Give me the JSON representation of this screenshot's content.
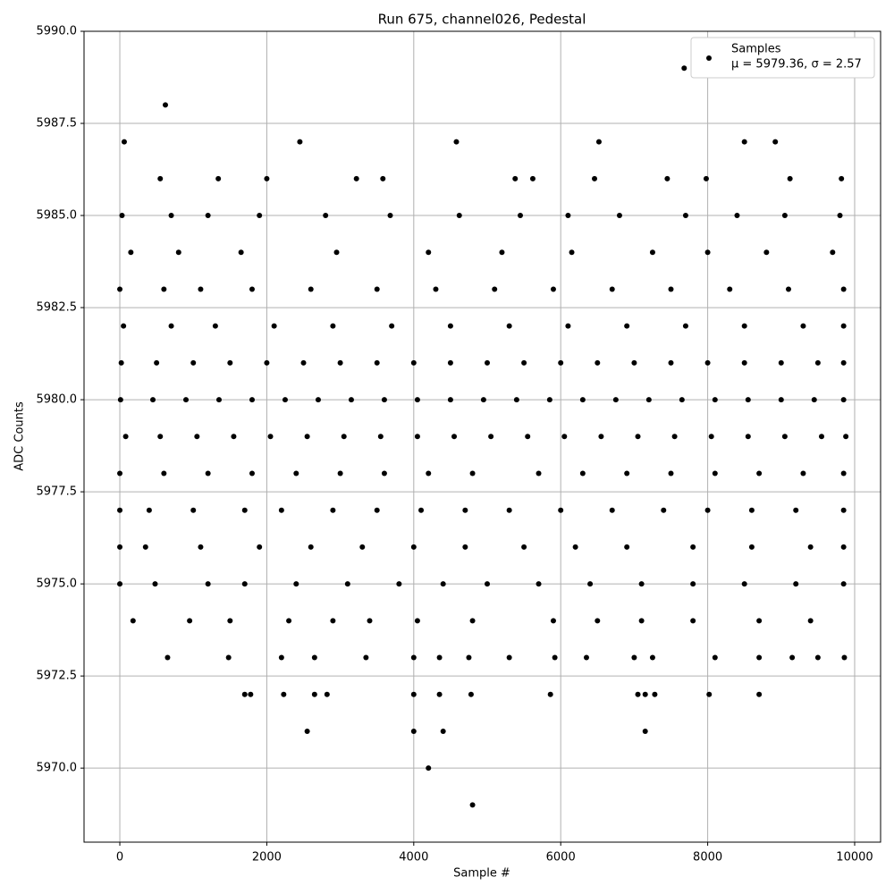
{
  "chart_data": {
    "type": "scatter",
    "title": "Run 675, channel026, Pedestal",
    "xlabel": "Sample #",
    "ylabel": "ADC Counts",
    "xlim": [
      -487,
      10353
    ],
    "ylim": [
      5967.99,
      5990
    ],
    "xticks": [
      0,
      2000,
      4000,
      6000,
      8000,
      10000
    ],
    "yticks": [
      {
        "value": 5970,
        "label": "5970.0"
      },
      {
        "value": 5972.5,
        "label": "5972.5"
      },
      {
        "value": 5975,
        "label": "5975.0"
      },
      {
        "value": 5977.5,
        "label": "5977.5"
      },
      {
        "value": 5980,
        "label": "5980.0"
      },
      {
        "value": 5982.5,
        "label": "5982.5"
      },
      {
        "value": 5985,
        "label": "5985.0"
      },
      {
        "value": 5987.5,
        "label": "5987.5"
      },
      {
        "value": 5990,
        "label": "5990.0"
      }
    ],
    "grid": true,
    "legend": "upper right",
    "legend_text": "μ = 5979.36, σ = 2.57",
    "x": [
      7680,
      620,
      60,
      2450,
      4580,
      6520,
      8500,
      8920,
      550,
      1340,
      2000,
      3220,
      3580,
      5380,
      5620,
      6460,
      7450,
      7980,
      9120,
      9820,
      30,
      700,
      1200,
      1900,
      2800,
      3680,
      4620,
      5450,
      6100,
      6800,
      7700,
      8400,
      9050,
      9800,
      150,
      800,
      1650,
      2950,
      4200,
      5200,
      6150,
      7250,
      8000,
      8800,
      9700,
      0,
      600,
      1100,
      1800,
      2600,
      3500,
      4300,
      5100,
      5900,
      6700,
      7500,
      8300,
      9100,
      9850,
      50,
      700,
      1300,
      2100,
      2900,
      3700,
      4500,
      5300,
      6100,
      6900,
      7700,
      8500,
      9300,
      9850,
      20,
      500,
      1000,
      1500,
      2000,
      2500,
      3000,
      3500,
      4000,
      4500,
      5000,
      5500,
      6000,
      6500,
      7000,
      7500,
      8000,
      8500,
      9000,
      9500,
      9850,
      10,
      450,
      900,
      1350,
      1800,
      2250,
      2700,
      3150,
      3600,
      4050,
      4500,
      4950,
      5400,
      5850,
      6300,
      6750,
      7200,
      7650,
      8100,
      8550,
      9000,
      9450,
      9850,
      80,
      550,
      1050,
      1550,
      2050,
      2550,
      3050,
      3550,
      4050,
      4550,
      5050,
      5550,
      6050,
      6550,
      7050,
      7550,
      8050,
      8550,
      9050,
      9550,
      9880,
      0,
      600,
      1200,
      1800,
      2400,
      3000,
      3600,
      4200,
      4800,
      5700,
      6300,
      6900,
      7500,
      8100,
      8700,
      9300,
      9850,
      0,
      400,
      1000,
      1700,
      2200,
      2900,
      3500,
      4100,
      4700,
      5300,
      6000,
      6700,
      7400,
      8000,
      8600,
      9200,
      9850,
      0,
      350,
      1100,
      1900,
      2600,
      3300,
      4000,
      4700,
      5500,
      6200,
      6900,
      7800,
      8600,
      9400,
      9850,
      0,
      480,
      1200,
      1700,
      2400,
      3100,
      3800,
      4400,
      5000,
      5700,
      6400,
      7100,
      7800,
      8500,
      9200,
      9850,
      180,
      950,
      1500,
      2300,
      2900,
      3400,
      4050,
      4800,
      5900,
      6500,
      7100,
      7800,
      8700,
      9400,
      650,
      1480,
      2200,
      2650,
      3350,
      4000,
      4350,
      4750,
      5300,
      5920,
      6350,
      7000,
      7250,
      8100,
      8700,
      9150,
      9500,
      9860,
      1700,
      1780,
      2230,
      2650,
      2820,
      4000,
      4350,
      4780,
      5860,
      7050,
      7150,
      7280,
      8020,
      8700,
      2550,
      4000,
      4400,
      7150,
      4200,
      4800
    ],
    "series": [
      {
        "name": "Samples",
        "color": "#000000",
        "values": [
          5989,
          5988,
          5987,
          5987,
          5987,
          5987,
          5987,
          5987,
          5986,
          5986,
          5986,
          5986,
          5986,
          5986,
          5986,
          5986,
          5986,
          5986,
          5986,
          5986,
          5985,
          5985,
          5985,
          5985,
          5985,
          5985,
          5985,
          5985,
          5985,
          5985,
          5985,
          5985,
          5985,
          5985,
          5984,
          5984,
          5984,
          5984,
          5984,
          5984,
          5984,
          5984,
          5984,
          5984,
          5984,
          5983,
          5983,
          5983,
          5983,
          5983,
          5983,
          5983,
          5983,
          5983,
          5983,
          5983,
          5983,
          5983,
          5983,
          5982,
          5982,
          5982,
          5982,
          5982,
          5982,
          5982,
          5982,
          5982,
          5982,
          5982,
          5982,
          5982,
          5982,
          5981,
          5981,
          5981,
          5981,
          5981,
          5981,
          5981,
          5981,
          5981,
          5981,
          5981,
          5981,
          5981,
          5981,
          5981,
          5981,
          5981,
          5981,
          5981,
          5981,
          5981,
          5980,
          5980,
          5980,
          5980,
          5980,
          5980,
          5980,
          5980,
          5980,
          5980,
          5980,
          5980,
          5980,
          5980,
          5980,
          5980,
          5980,
          5980,
          5980,
          5980,
          5980,
          5980,
          5980,
          5979,
          5979,
          5979,
          5979,
          5979,
          5979,
          5979,
          5979,
          5979,
          5979,
          5979,
          5979,
          5979,
          5979,
          5979,
          5979,
          5979,
          5979,
          5979,
          5979,
          5979,
          5978,
          5978,
          5978,
          5978,
          5978,
          5978,
          5978,
          5978,
          5978,
          5978,
          5978,
          5978,
          5978,
          5978,
          5978,
          5978,
          5978,
          5977,
          5977,
          5977,
          5977,
          5977,
          5977,
          5977,
          5977,
          5977,
          5977,
          5977,
          5977,
          5977,
          5977,
          5977,
          5977,
          5977,
          5976,
          5976,
          5976,
          5976,
          5976,
          5976,
          5976,
          5976,
          5976,
          5976,
          5976,
          5976,
          5976,
          5976,
          5976,
          5975,
          5975,
          5975,
          5975,
          5975,
          5975,
          5975,
          5975,
          5975,
          5975,
          5975,
          5975,
          5975,
          5975,
          5975,
          5975,
          5974,
          5974,
          5974,
          5974,
          5974,
          5974,
          5974,
          5974,
          5974,
          5974,
          5974,
          5974,
          5974,
          5974,
          5973,
          5973,
          5973,
          5973,
          5973,
          5973,
          5973,
          5973,
          5973,
          5973,
          5973,
          5973,
          5973,
          5973,
          5973,
          5973,
          5973,
          5973,
          5972,
          5972,
          5972,
          5972,
          5972,
          5972,
          5972,
          5972,
          5972,
          5972,
          5972,
          5972,
          5972,
          5972,
          5971,
          5971,
          5971,
          5971,
          5970,
          5969
        ]
      }
    ]
  }
}
